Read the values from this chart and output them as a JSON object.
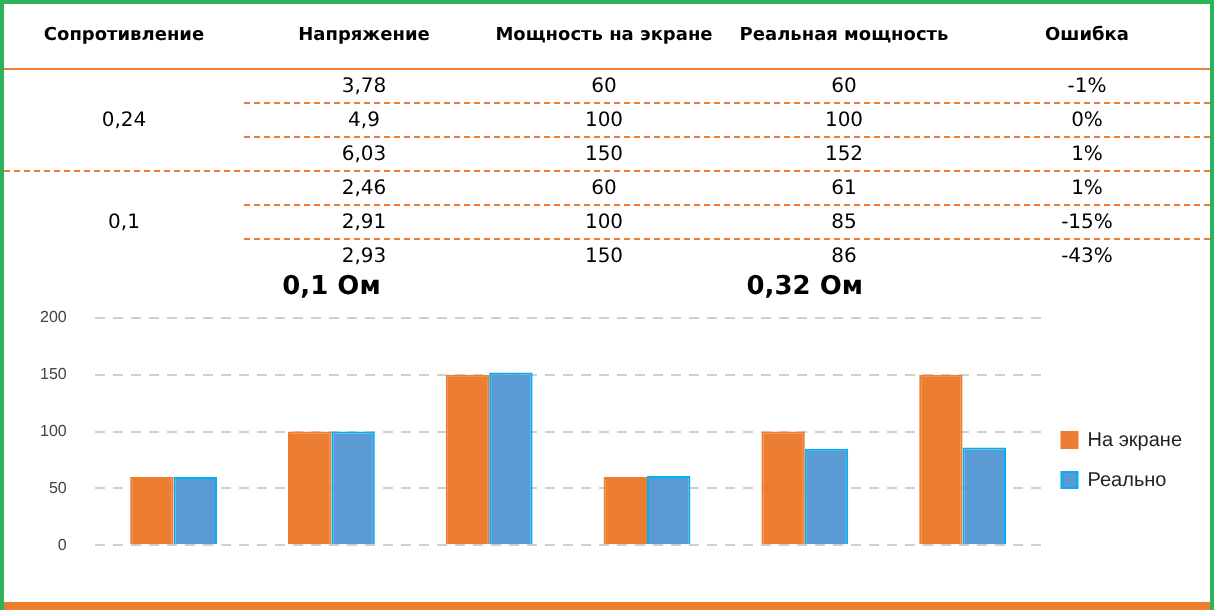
{
  "chart_data": [
    {
      "type": "other",
      "annotations": [
        "Сопротивление",
        "Напряжение",
        "Мощность на экране",
        "Реальная мощность",
        "Ошибка",
        "0,24",
        "3,78",
        "60",
        "60",
        "-1%",
        "4,9",
        "100",
        "100",
        "0%",
        "6,03",
        "150",
        "152",
        "1%",
        "0,1",
        "2,46",
        "60",
        "61",
        "1%",
        "2,91",
        "100",
        "85",
        "-15%",
        "2,93",
        "150",
        "86",
        "-43%"
      ]
    },
    {
      "type": "bar",
      "annotations": [
        "0,1 Ом",
        "0,32 Ом"
      ],
      "categories": [
        null,
        null,
        null,
        null,
        null,
        null
      ],
      "series": [
        {
          "name": "На экране",
          "color": "#ed7d31",
          "values": [
            60,
            100,
            150,
            60,
            100,
            150
          ]
        },
        {
          "name": "Реально",
          "color": "#5b9bd5",
          "values": [
            60,
            100,
            152,
            61,
            85,
            86
          ]
        }
      ],
      "ylim": [
        0,
        200
      ],
      "yticks": [
        0,
        50,
        100,
        150,
        200
      ],
      "grid": "y",
      "legend": "right"
    }
  ]
}
